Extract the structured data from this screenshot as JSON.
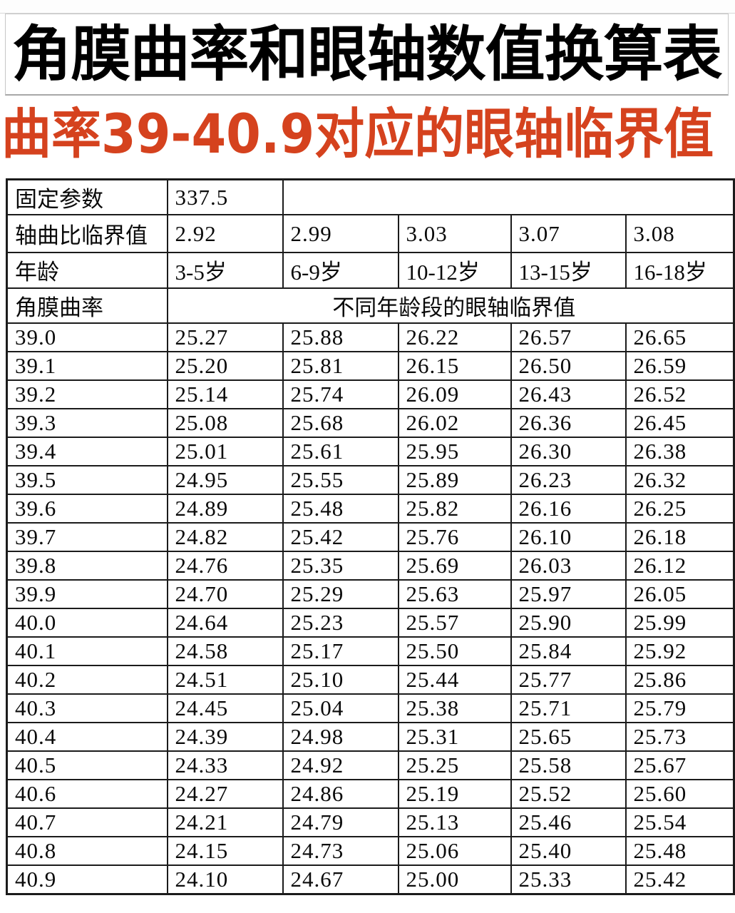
{
  "page": {
    "title": "角膜曲率和眼轴数值换算表",
    "subtitle": "曲率39-40.9对应的眼轴临界值"
  },
  "colors": {
    "subtitle_red": "#d5421e",
    "title_black": "#000000",
    "table_border": "#1b1b1b"
  },
  "table": {
    "fixed_param_label": "固定参数",
    "fixed_param_value": "337.5",
    "ratio_label": "轴曲比临界值",
    "ratio_values": [
      "2.92",
      "2.99",
      "3.03",
      "3.07",
      "3.08"
    ],
    "age_label": "年龄",
    "age_values": [
      "3-5岁",
      "6-9岁",
      "10-12岁",
      "13-15岁",
      "16-18岁"
    ],
    "curvature_label": "角膜曲率",
    "span_header": "不同年龄段的眼轴临界值",
    "rows": [
      {
        "curvature": "39.0",
        "values": [
          "25.27",
          "25.88",
          "26.22",
          "26.57",
          "26.65"
        ]
      },
      {
        "curvature": "39.1",
        "values": [
          "25.20",
          "25.81",
          "26.15",
          "26.50",
          "26.59"
        ]
      },
      {
        "curvature": "39.2",
        "values": [
          "25.14",
          "25.74",
          "26.09",
          "26.43",
          "26.52"
        ]
      },
      {
        "curvature": "39.3",
        "values": [
          "25.08",
          "25.68",
          "26.02",
          "26.36",
          "26.45"
        ]
      },
      {
        "curvature": "39.4",
        "values": [
          "25.01",
          "25.61",
          "25.95",
          "26.30",
          "26.38"
        ]
      },
      {
        "curvature": "39.5",
        "values": [
          "24.95",
          "25.55",
          "25.89",
          "26.23",
          "26.32"
        ]
      },
      {
        "curvature": "39.6",
        "values": [
          "24.89",
          "25.48",
          "25.82",
          "26.16",
          "26.25"
        ]
      },
      {
        "curvature": "39.7",
        "values": [
          "24.82",
          "25.42",
          "25.76",
          "26.10",
          "26.18"
        ]
      },
      {
        "curvature": "39.8",
        "values": [
          "24.76",
          "25.35",
          "25.69",
          "26.03",
          "26.12"
        ]
      },
      {
        "curvature": "39.9",
        "values": [
          "24.70",
          "25.29",
          "25.63",
          "25.97",
          "26.05"
        ]
      },
      {
        "curvature": "40.0",
        "values": [
          "24.64",
          "25.23",
          "25.57",
          "25.90",
          "25.99"
        ]
      },
      {
        "curvature": "40.1",
        "values": [
          "24.58",
          "25.17",
          "25.50",
          "25.84",
          "25.92"
        ]
      },
      {
        "curvature": "40.2",
        "values": [
          "24.51",
          "25.10",
          "25.44",
          "25.77",
          "25.86"
        ]
      },
      {
        "curvature": "40.3",
        "values": [
          "24.45",
          "25.04",
          "25.38",
          "25.71",
          "25.79"
        ]
      },
      {
        "curvature": "40.4",
        "values": [
          "24.39",
          "24.98",
          "25.31",
          "25.65",
          "25.73"
        ]
      },
      {
        "curvature": "40.5",
        "values": [
          "24.33",
          "24.92",
          "25.25",
          "25.58",
          "25.67"
        ]
      },
      {
        "curvature": "40.6",
        "values": [
          "24.27",
          "24.86",
          "25.19",
          "25.52",
          "25.60"
        ]
      },
      {
        "curvature": "40.7",
        "values": [
          "24.21",
          "24.79",
          "25.13",
          "25.46",
          "25.54"
        ]
      },
      {
        "curvature": "40.8",
        "values": [
          "24.15",
          "24.73",
          "25.06",
          "25.40",
          "25.48"
        ]
      },
      {
        "curvature": "40.9",
        "values": [
          "24.10",
          "24.67",
          "25.00",
          "25.33",
          "25.42"
        ]
      }
    ]
  }
}
